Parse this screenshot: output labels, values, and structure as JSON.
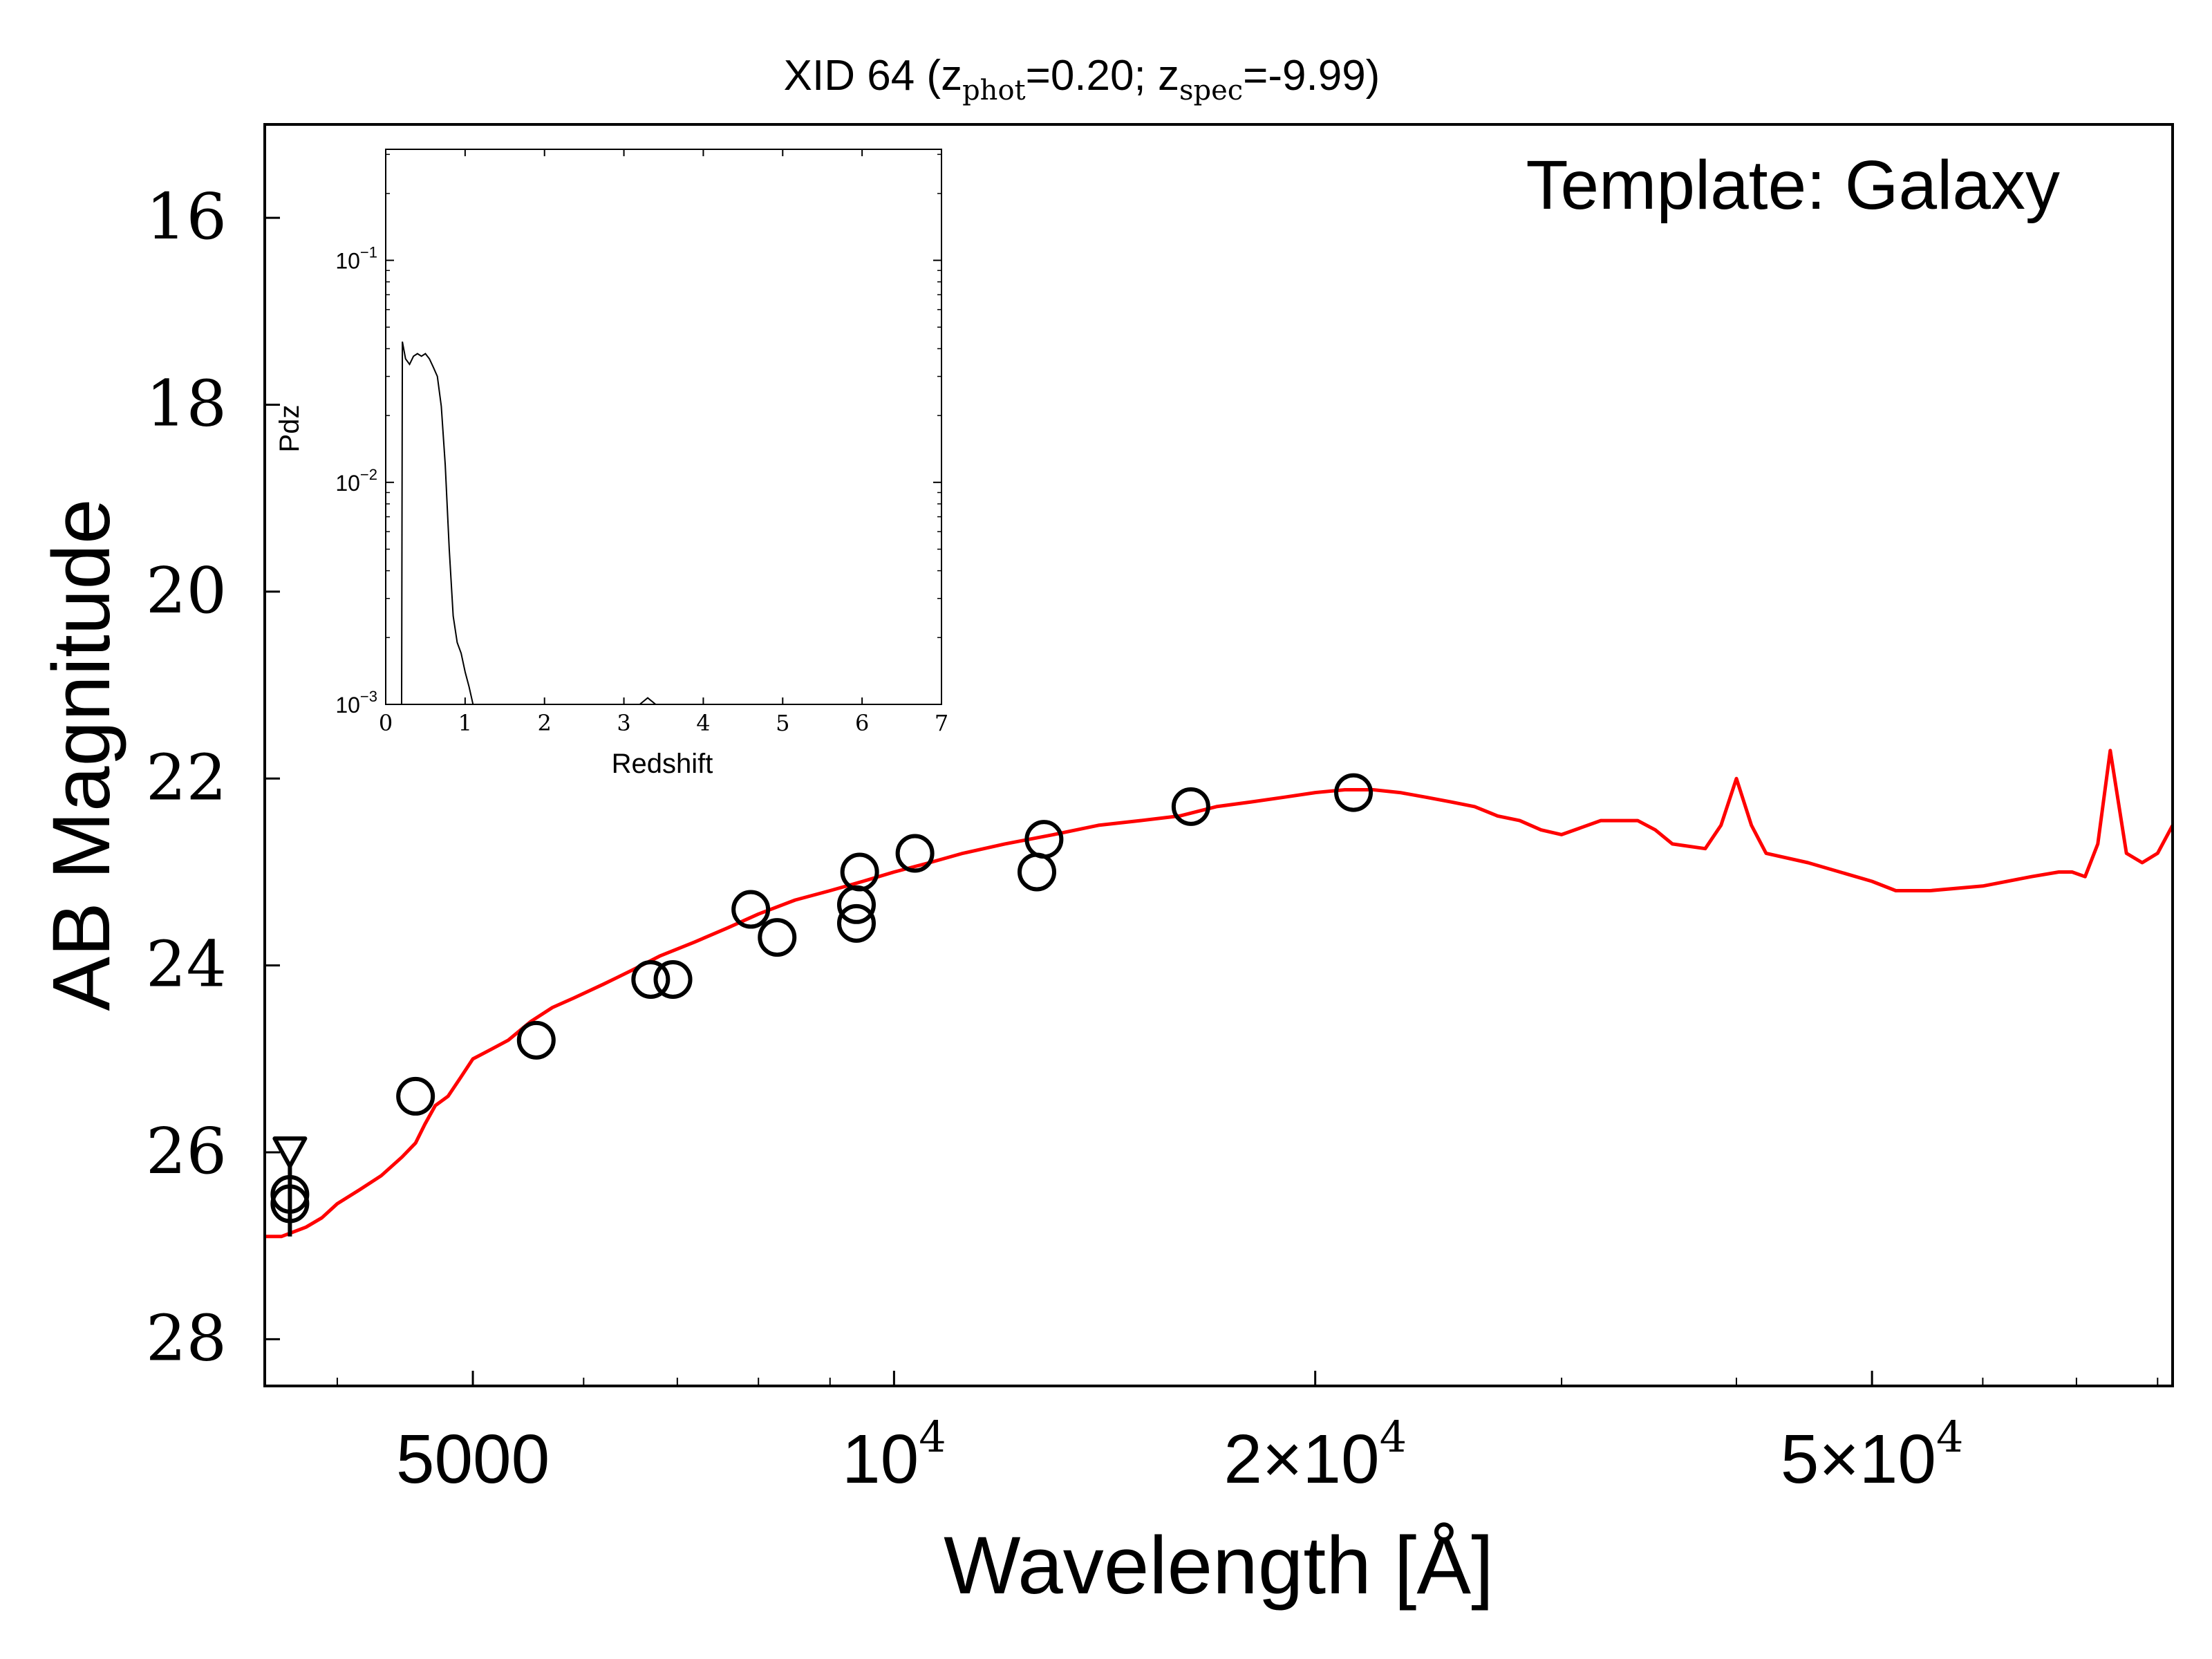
{
  "chart_data": [
    {
      "type": "scatter",
      "title_prefix": "XID 64 (z",
      "title_sub1": "phot",
      "title_mid": "=0.20; z",
      "title_sub2": "spec",
      "title_suffix": "=-9.99)",
      "xlabel": "Wavelength [Å]",
      "ylabel": "AB Magnitude",
      "annotation": "Template: Galaxy",
      "xscale": "log",
      "xlim": [
        3550,
        82000
      ],
      "ylim": [
        28.5,
        15.0
      ],
      "y_inverted": true,
      "xticks": [
        {
          "value": 5000,
          "base": "5000",
          "exp": ""
        },
        {
          "value": 10000,
          "base": "10",
          "exp": "4"
        },
        {
          "value": 20000,
          "base": "2×10",
          "exp": "4"
        },
        {
          "value": 50000,
          "base": "5×10",
          "exp": "4"
        }
      ],
      "yticks": [
        {
          "value": 16,
          "label": "16"
        },
        {
          "value": 18,
          "label": "18"
        },
        {
          "value": 20,
          "label": "20"
        },
        {
          "value": 22,
          "label": "22"
        },
        {
          "value": 24,
          "label": "24"
        },
        {
          "value": 26,
          "label": "26"
        },
        {
          "value": 28,
          "label": "28"
        }
      ],
      "series": [
        {
          "kind": "line",
          "color": "#ff0000",
          "x": [
            3550,
            3650,
            3800,
            3900,
            4000,
            4150,
            4300,
            4450,
            4550,
            4620,
            4700,
            4800,
            4900,
            5000,
            5150,
            5300,
            5500,
            5700,
            5900,
            6200,
            6500,
            6800,
            7200,
            7600,
            8000,
            8500,
            9000,
            9500,
            10000,
            10600,
            11200,
            12000,
            13000,
            14000,
            15000,
            16000,
            17000,
            18000,
            19000,
            20000,
            21000,
            22000,
            23000,
            24000,
            25000,
            26000,
            27000,
            28000,
            29000,
            30000,
            32000,
            34000,
            35000,
            36000,
            38000,
            39000,
            40000,
            41000,
            42000,
            45000,
            50000,
            52000,
            55000,
            60000,
            65000,
            68000,
            69500,
            71000,
            72500,
            74000,
            76000,
            78000,
            80000,
            82000
          ],
          "y": [
            26.9,
            26.9,
            26.8,
            26.7,
            26.55,
            26.4,
            26.25,
            26.05,
            25.9,
            25.7,
            25.5,
            25.4,
            25.2,
            25.0,
            24.9,
            24.8,
            24.6,
            24.45,
            24.35,
            24.2,
            24.05,
            23.9,
            23.75,
            23.6,
            23.45,
            23.3,
            23.2,
            23.1,
            23.0,
            22.9,
            22.8,
            22.7,
            22.6,
            22.5,
            22.45,
            22.4,
            22.3,
            22.25,
            22.2,
            22.15,
            22.12,
            22.12,
            22.15,
            22.2,
            22.25,
            22.3,
            22.4,
            22.45,
            22.55,
            22.6,
            22.45,
            22.45,
            22.55,
            22.7,
            22.75,
            22.5,
            22.0,
            22.5,
            22.8,
            22.9,
            23.1,
            23.2,
            23.2,
            23.15,
            23.05,
            23.0,
            23.0,
            23.05,
            22.7,
            21.7,
            22.8,
            22.9,
            22.8,
            22.5
          ]
        },
        {
          "kind": "points",
          "marker": "circle",
          "x": [
            3700,
            3700,
            4550,
            5550,
            6700,
            6950,
            7900,
            8250,
            9400,
            9400,
            9450,
            10350,
            12650,
            12800,
            16300,
            21300
          ],
          "y": [
            26.45,
            26.55,
            25.4,
            24.8,
            24.15,
            24.15,
            23.4,
            23.7,
            23.55,
            23.35,
            23.0,
            22.8,
            23.0,
            22.65,
            22.3,
            22.15
          ]
        },
        {
          "kind": "upper_limit",
          "marker": "triangle-down",
          "x": [
            3700
          ],
          "y": [
            26.0
          ]
        }
      ]
    },
    {
      "type": "line",
      "role": "inset",
      "xlabel": "Redshift",
      "ylabel": "Pdz",
      "xlim": [
        0,
        7
      ],
      "ylim_log10": [
        -3,
        -0.5
      ],
      "yscale": "log",
      "xticks": [
        "0",
        "1",
        "2",
        "3",
        "4",
        "5",
        "6",
        "7"
      ],
      "yticks": [
        {
          "log": -1,
          "base": "10",
          "exp": "−1"
        },
        {
          "log": -2,
          "base": "10",
          "exp": "−2"
        },
        {
          "log": -3,
          "base": "10",
          "exp": "−3"
        }
      ],
      "x": [
        0.2,
        0.21,
        0.25,
        0.3,
        0.35,
        0.4,
        0.45,
        0.5,
        0.55,
        0.6,
        0.65,
        0.7,
        0.75,
        0.8,
        0.85,
        0.9,
        0.95,
        1.0,
        1.05,
        1.1
      ],
      "y": [
        0.001,
        0.043,
        0.036,
        0.034,
        0.037,
        0.038,
        0.037,
        0.038,
        0.036,
        0.033,
        0.03,
        0.022,
        0.012,
        0.005,
        0.0025,
        0.0019,
        0.0017,
        0.0014,
        0.0012,
        0.001
      ],
      "bump_x": [
        3.2,
        3.3,
        3.4
      ],
      "bump_y": [
        0.001,
        0.00107,
        0.001
      ]
    }
  ]
}
